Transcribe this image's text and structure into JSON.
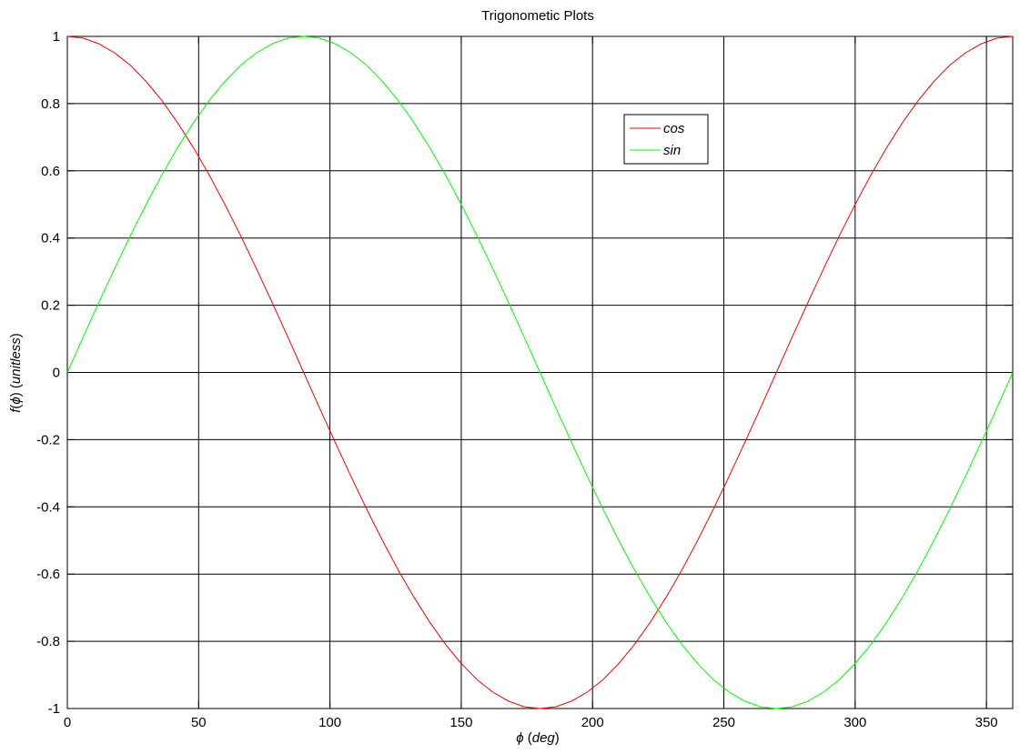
{
  "chart_data": {
    "type": "line",
    "title": "Trigonometic Plots",
    "xlabel": {
      "symbol": "ϕ",
      "unit": "deg"
    },
    "ylabel": {
      "func": "f",
      "symbol": "ϕ",
      "unit": "unitless"
    },
    "xlim": [
      0,
      360
    ],
    "ylim": [
      -1,
      1
    ],
    "xticks": [
      0,
      50,
      100,
      150,
      200,
      250,
      300,
      350
    ],
    "xtick_labels": [
      "0",
      "50",
      "100",
      "150",
      "200",
      "250",
      "300",
      "350"
    ],
    "yticks": [
      -1,
      -0.8,
      -0.6,
      -0.4,
      -0.2,
      0,
      0.2,
      0.4,
      0.6,
      0.8,
      1
    ],
    "ytick_labels": [
      "-1",
      "-0.8",
      "-0.6",
      "-0.4",
      "-0.2",
      "0",
      "0.2",
      "0.4",
      "0.6",
      "0.8",
      "1"
    ],
    "grid": true,
    "legend_position": "top-right",
    "x": [
      0,
      6,
      12,
      18,
      24,
      30,
      36,
      42,
      48,
      54,
      60,
      66,
      72,
      78,
      84,
      90,
      96,
      102,
      108,
      114,
      120,
      126,
      132,
      138,
      144,
      150,
      156,
      162,
      168,
      174,
      180,
      186,
      192,
      198,
      204,
      210,
      216,
      222,
      228,
      234,
      240,
      246,
      252,
      258,
      264,
      270,
      276,
      282,
      288,
      294,
      300,
      306,
      312,
      318,
      324,
      330,
      336,
      342,
      348,
      354,
      360
    ],
    "series": [
      {
        "name": "cos",
        "color": "#ff0000",
        "values": [
          1,
          0.995,
          0.978,
          0.951,
          0.914,
          0.866,
          0.809,
          0.743,
          0.669,
          0.588,
          0.5,
          0.407,
          0.309,
          0.208,
          0.105,
          0,
          -0.105,
          -0.208,
          -0.309,
          -0.407,
          -0.5,
          -0.588,
          -0.669,
          -0.743,
          -0.809,
          -0.866,
          -0.914,
          -0.951,
          -0.978,
          -0.995,
          -1,
          -0.995,
          -0.978,
          -0.951,
          -0.914,
          -0.866,
          -0.809,
          -0.743,
          -0.669,
          -0.588,
          -0.5,
          -0.407,
          -0.309,
          -0.208,
          -0.105,
          0,
          0.105,
          0.208,
          0.309,
          0.407,
          0.5,
          0.588,
          0.669,
          0.743,
          0.809,
          0.866,
          0.914,
          0.951,
          0.978,
          0.995,
          1
        ]
      },
      {
        "name": "sin",
        "color": "#00ff00",
        "values": [
          0,
          0.105,
          0.208,
          0.309,
          0.407,
          0.5,
          0.588,
          0.669,
          0.743,
          0.809,
          0.866,
          0.914,
          0.951,
          0.978,
          0.995,
          1,
          0.995,
          0.978,
          0.951,
          0.914,
          0.866,
          0.809,
          0.743,
          0.669,
          0.588,
          0.5,
          0.407,
          0.309,
          0.208,
          0.105,
          0,
          -0.105,
          -0.208,
          -0.309,
          -0.407,
          -0.5,
          -0.588,
          -0.669,
          -0.743,
          -0.809,
          -0.866,
          -0.914,
          -0.951,
          -0.978,
          -0.995,
          -1,
          -0.995,
          -0.978,
          -0.951,
          -0.914,
          -0.866,
          -0.809,
          -0.743,
          -0.669,
          -0.588,
          -0.5,
          -0.407,
          -0.309,
          -0.208,
          -0.105,
          0
        ]
      }
    ]
  }
}
